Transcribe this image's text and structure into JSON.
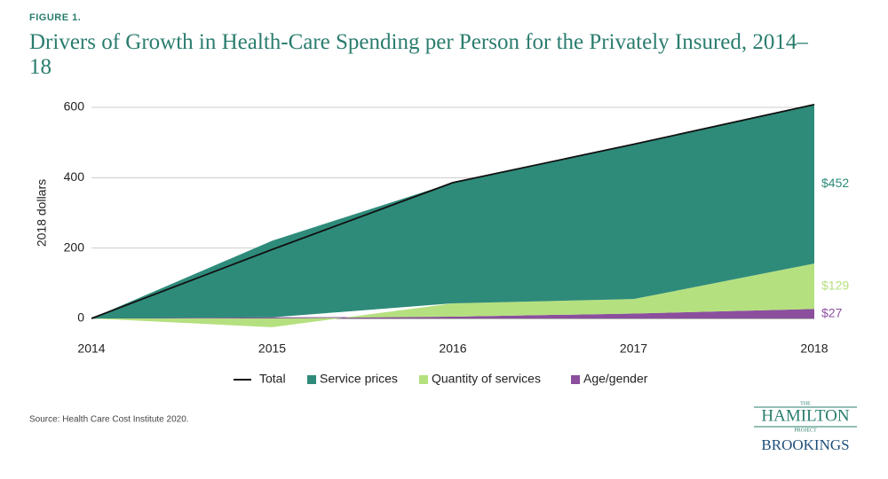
{
  "figure_label": "FIGURE 1.",
  "chart_data": {
    "type": "area",
    "title": "Drivers of Growth in Health-Care Spending per Person for the Privately Insured, 2014–18",
    "y_label": "2018 dollars",
    "categories": [
      "2014",
      "2015",
      "2016",
      "2017",
      "2018"
    ],
    "ylim": [
      -30,
      640
    ],
    "yticks": [
      0,
      200,
      400,
      600
    ],
    "grid": true,
    "series": [
      {
        "name": "Total",
        "type": "line",
        "color": "#111111",
        "values": [
          0,
          196,
          386,
          495,
          608
        ]
      },
      {
        "name": "Service prices",
        "color": "#2e8b7a",
        "values": [
          0,
          218,
          343,
          440,
          452
        ],
        "value_labels": [
          null,
          null,
          null,
          null,
          "$452"
        ]
      },
      {
        "name": "Quantity of services",
        "color": "#b5e07f",
        "values": [
          0,
          -25,
          38,
          41,
          129
        ],
        "value_labels": [
          null,
          null,
          null,
          null,
          "$129"
        ]
      },
      {
        "name": "Age/gender",
        "color": "#8b4f9e",
        "values": [
          0,
          3,
          5,
          14,
          27
        ],
        "value_labels": [
          null,
          null,
          null,
          null,
          "$27"
        ]
      }
    ],
    "legend": "bottom"
  },
  "source": "Source: Health Care Cost Institute 2020.",
  "logo": {
    "the": "THE",
    "hamilton": "HAMILTON",
    "project": "PROJECT",
    "brookings": "BROOKINGS"
  }
}
